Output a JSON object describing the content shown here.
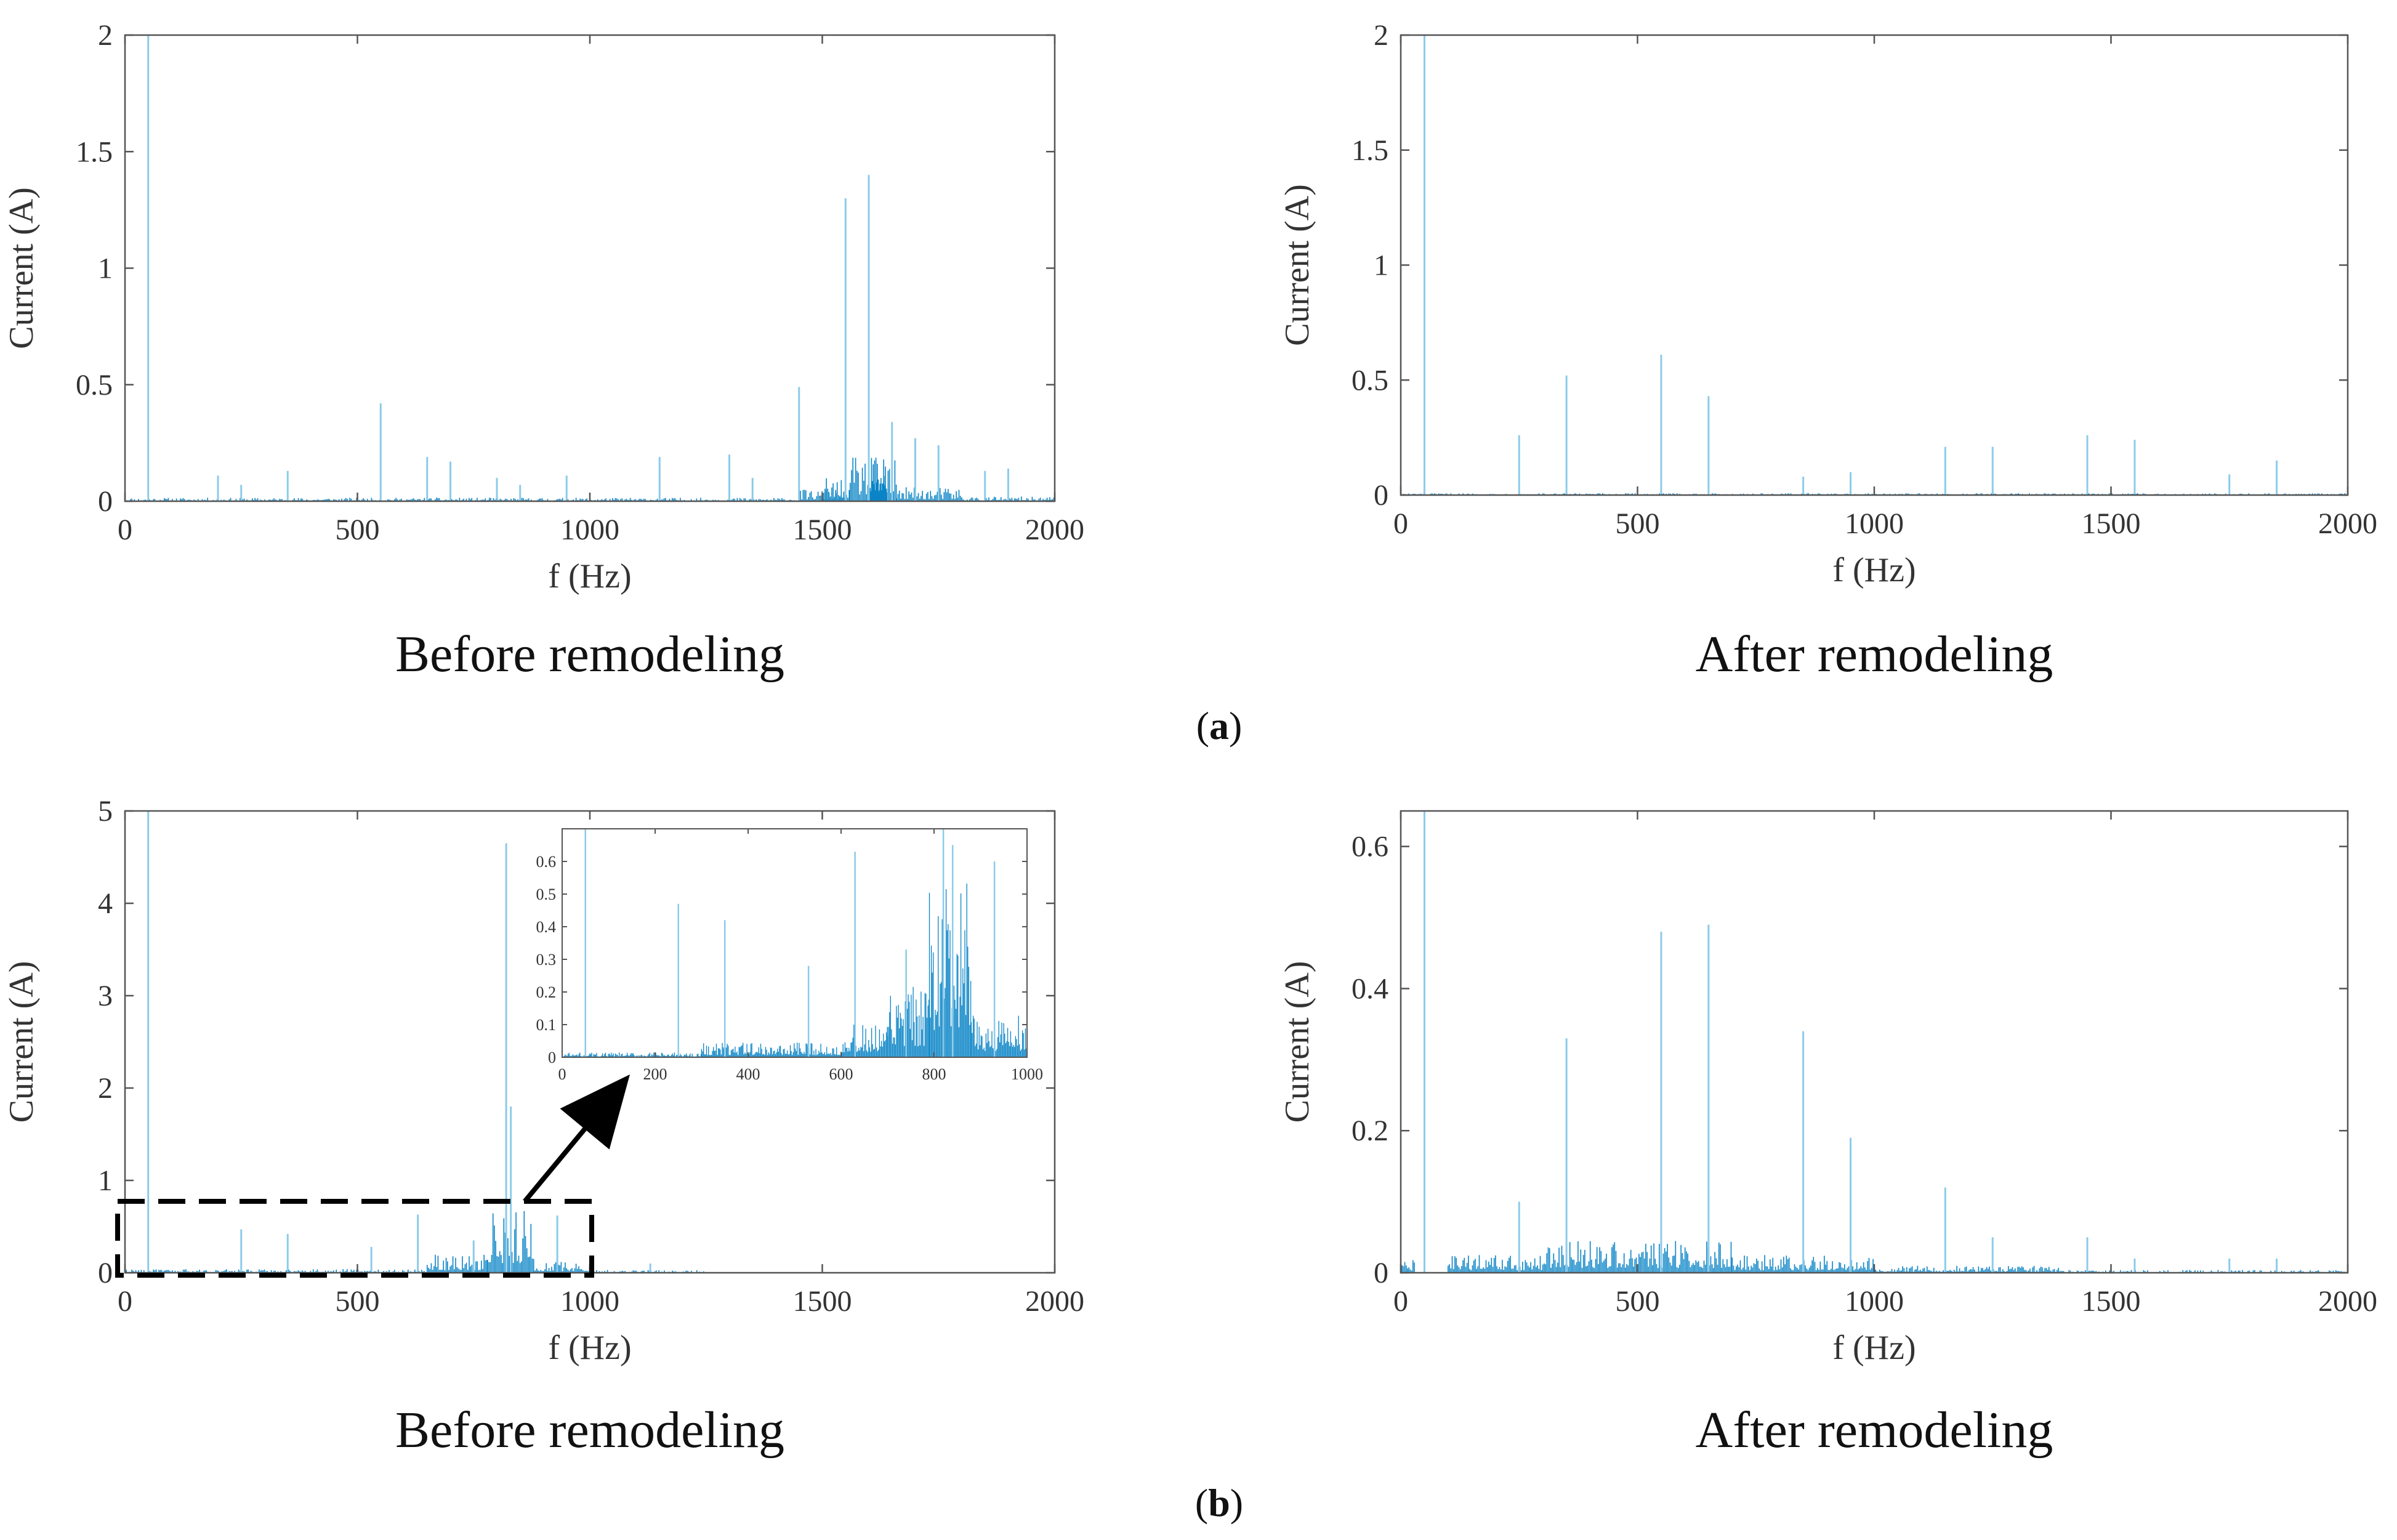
{
  "figure": {
    "panel_a_label": "a",
    "panel_b_label": "b"
  },
  "colors": {
    "spectrum": "#0a84c6",
    "spike": "#8ccbea",
    "axis": "#555555",
    "annotation": "#000000"
  },
  "chart_data": [
    {
      "id": "a-before",
      "type": "bar",
      "caption": "Before remodeling",
      "xlabel": "f (Hz)",
      "ylabel": "Current (A)",
      "xlim": [
        0,
        2000
      ],
      "ylim": [
        0,
        2
      ],
      "xticks": [
        {
          "v": 0,
          "label": "0"
        },
        {
          "v": 500,
          "label": "500"
        },
        {
          "v": 1000,
          "label": "1000"
        },
        {
          "v": 1500,
          "label": "1500"
        },
        {
          "v": 2000,
          "label": "2000"
        }
      ],
      "yticks": [
        {
          "v": 0,
          "label": "0"
        },
        {
          "v": 0.5,
          "label": "0.5"
        },
        {
          "v": 1,
          "label": "1"
        },
        {
          "v": 1.5,
          "label": "1.5"
        },
        {
          "v": 2,
          "label": "2"
        }
      ],
      "spikes": [
        [
          50,
          2.0
        ],
        [
          200,
          0.11
        ],
        [
          250,
          0.07
        ],
        [
          350,
          0.13
        ],
        [
          550,
          0.42
        ],
        [
          650,
          0.19
        ],
        [
          700,
          0.17
        ],
        [
          800,
          0.1
        ],
        [
          850,
          0.07
        ],
        [
          950,
          0.11
        ],
        [
          1150,
          0.19
        ],
        [
          1300,
          0.2
        ],
        [
          1350,
          0.1
        ],
        [
          1450,
          0.49
        ],
        [
          1550,
          1.3
        ],
        [
          1600,
          1.4
        ],
        [
          1650,
          0.34
        ],
        [
          1700,
          0.27
        ],
        [
          1750,
          0.24
        ],
        [
          1850,
          0.13
        ],
        [
          1900,
          0.14
        ]
      ],
      "noise_bands": [
        {
          "from": 0,
          "to": 1450,
          "amp": 0.015
        },
        {
          "from": 1450,
          "to": 1560,
          "amp": 0.05
        },
        {
          "from": 1500,
          "to": 1550,
          "amp": 0.1
        },
        {
          "from": 1560,
          "to": 1660,
          "amp": 0.19
        },
        {
          "from": 1600,
          "to": 1640,
          "amp": 0.26
        },
        {
          "from": 1660,
          "to": 1800,
          "amp": 0.06
        },
        {
          "from": 1800,
          "to": 2000,
          "amp": 0.02
        }
      ]
    },
    {
      "id": "a-after",
      "type": "bar",
      "caption": "After remodeling",
      "xlabel": "f (Hz)",
      "ylabel": "Current (A)",
      "xlim": [
        0,
        2000
      ],
      "ylim": [
        0,
        2
      ],
      "xticks": [
        {
          "v": 0,
          "label": "0"
        },
        {
          "v": 500,
          "label": "500"
        },
        {
          "v": 1000,
          "label": "1000"
        },
        {
          "v": 1500,
          "label": "1500"
        },
        {
          "v": 2000,
          "label": "2000"
        }
      ],
      "yticks": [
        {
          "v": 0,
          "label": "0"
        },
        {
          "v": 0.5,
          "label": "0.5"
        },
        {
          "v": 1,
          "label": "1"
        },
        {
          "v": 1.5,
          "label": "1.5"
        },
        {
          "v": 2,
          "label": "2"
        }
      ],
      "spikes": [
        [
          50,
          2.0
        ],
        [
          250,
          0.26
        ],
        [
          350,
          0.52
        ],
        [
          550,
          0.61
        ],
        [
          650,
          0.43
        ],
        [
          850,
          0.08
        ],
        [
          950,
          0.1
        ],
        [
          1150,
          0.21
        ],
        [
          1250,
          0.21
        ],
        [
          1450,
          0.26
        ],
        [
          1550,
          0.24
        ],
        [
          1750,
          0.09
        ],
        [
          1850,
          0.15
        ]
      ],
      "noise_bands": [
        {
          "from": 0,
          "to": 2000,
          "amp": 0.008
        }
      ]
    },
    {
      "id": "b-before",
      "type": "bar",
      "caption": "Before remodeling",
      "xlabel": "f (Hz)",
      "ylabel": "Current (A)",
      "xlim": [
        0,
        2000
      ],
      "ylim": [
        0,
        5
      ],
      "xticks": [
        {
          "v": 0,
          "label": "0"
        },
        {
          "v": 500,
          "label": "500"
        },
        {
          "v": 1000,
          "label": "1000"
        },
        {
          "v": 1500,
          "label": "1500"
        },
        {
          "v": 2000,
          "label": "2000"
        }
      ],
      "yticks": [
        {
          "v": 0,
          "label": "0"
        },
        {
          "v": 1,
          "label": "1"
        },
        {
          "v": 2,
          "label": "2"
        },
        {
          "v": 3,
          "label": "3"
        },
        {
          "v": 4,
          "label": "4"
        },
        {
          "v": 5,
          "label": "5"
        }
      ],
      "spikes": [
        [
          50,
          5.0
        ],
        [
          250,
          0.47
        ],
        [
          350,
          0.42
        ],
        [
          530,
          0.28
        ],
        [
          630,
          0.63
        ],
        [
          750,
          0.35
        ],
        [
          820,
          4.65
        ],
        [
          830,
          1.8
        ],
        [
          930,
          0.62
        ],
        [
          1130,
          0.1
        ]
      ],
      "noise_bands": [
        {
          "from": 0,
          "to": 650,
          "amp": 0.04
        },
        {
          "from": 650,
          "to": 780,
          "amp": 0.2
        },
        {
          "from": 780,
          "to": 880,
          "amp": 0.7
        },
        {
          "from": 880,
          "to": 1000,
          "amp": 0.12
        },
        {
          "from": 1000,
          "to": 1250,
          "amp": 0.03
        }
      ],
      "zoom_box": {
        "x_from": 0,
        "x_to": 1000,
        "y_from": 0,
        "y_to": 0.8
      },
      "inset": {
        "xlim": [
          0,
          1000
        ],
        "ylim": [
          0,
          0.7
        ],
        "xticks": [
          {
            "v": 0,
            "label": "0"
          },
          {
            "v": 200,
            "label": "200"
          },
          {
            "v": 400,
            "label": "400"
          },
          {
            "v": 600,
            "label": "600"
          },
          {
            "v": 800,
            "label": "800"
          },
          {
            "v": 1000,
            "label": "1000"
          }
        ],
        "yticks": [
          {
            "v": 0,
            "label": "0"
          },
          {
            "v": 0.1,
            "label": "0.1"
          },
          {
            "v": 0.2,
            "label": "0.2"
          },
          {
            "v": 0.3,
            "label": "0.3"
          },
          {
            "v": 0.4,
            "label": "0.4"
          },
          {
            "v": 0.5,
            "label": "0.5"
          },
          {
            "v": 0.6,
            "label": "0.6"
          }
        ],
        "spikes": [
          [
            50,
            0.7
          ],
          [
            250,
            0.47
          ],
          [
            350,
            0.42
          ],
          [
            530,
            0.28
          ],
          [
            630,
            0.63
          ],
          [
            740,
            0.33
          ],
          [
            820,
            0.7
          ],
          [
            840,
            0.65
          ],
          [
            930,
            0.6
          ]
        ],
        "noise_bands": [
          {
            "from": 0,
            "to": 300,
            "amp": 0.015
          },
          {
            "from": 300,
            "to": 600,
            "amp": 0.045
          },
          {
            "from": 600,
            "to": 700,
            "amp": 0.1
          },
          {
            "from": 700,
            "to": 790,
            "amp": 0.22
          },
          {
            "from": 790,
            "to": 880,
            "amp": 0.55
          },
          {
            "from": 880,
            "to": 1000,
            "amp": 0.13
          }
        ]
      }
    },
    {
      "id": "b-after",
      "type": "bar",
      "caption": "After remodeling",
      "xlabel": "f (Hz)",
      "ylabel": "Current (A)",
      "xlim": [
        0,
        2000
      ],
      "ylim": [
        0,
        0.65
      ],
      "xticks": [
        {
          "v": 0,
          "label": "0"
        },
        {
          "v": 500,
          "label": "500"
        },
        {
          "v": 1000,
          "label": "1000"
        },
        {
          "v": 1500,
          "label": "1500"
        },
        {
          "v": 2000,
          "label": "2000"
        }
      ],
      "yticks": [
        {
          "v": 0,
          "label": "0"
        },
        {
          "v": 0.2,
          "label": "0.2"
        },
        {
          "v": 0.4,
          "label": "0.4"
        },
        {
          "v": 0.6,
          "label": "0.6"
        }
      ],
      "spikes": [
        [
          50,
          0.65
        ],
        [
          250,
          0.1
        ],
        [
          350,
          0.33
        ],
        [
          550,
          0.48
        ],
        [
          650,
          0.49
        ],
        [
          850,
          0.34
        ],
        [
          950,
          0.19
        ],
        [
          1150,
          0.12
        ],
        [
          1250,
          0.05
        ],
        [
          1450,
          0.05
        ],
        [
          1550,
          0.02
        ],
        [
          1750,
          0.02
        ],
        [
          1850,
          0.02
        ]
      ],
      "noise_bands": [
        {
          "from": 0,
          "to": 30,
          "amp": 0.02
        },
        {
          "from": 100,
          "to": 300,
          "amp": 0.025
        },
        {
          "from": 300,
          "to": 700,
          "amp": 0.045
        },
        {
          "from": 700,
          "to": 1000,
          "amp": 0.025
        },
        {
          "from": 1000,
          "to": 1400,
          "amp": 0.01
        },
        {
          "from": 1400,
          "to": 2000,
          "amp": 0.004
        }
      ]
    }
  ]
}
